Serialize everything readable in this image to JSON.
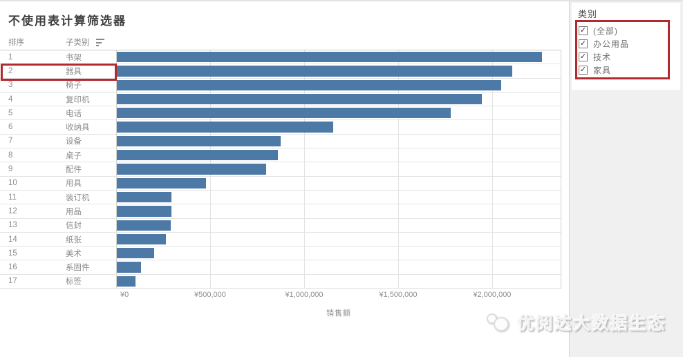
{
  "title": "不使用表计算筛选器",
  "table": {
    "rank_header": "排序",
    "subcat_header": "子类别",
    "sort_icon": "sort-descending-icon"
  },
  "chart_data": {
    "type": "bar",
    "orientation": "horizontal",
    "title": "不使用表计算筛选器",
    "xlabel": "销售额",
    "ylabel": "子类别",
    "xlim": [
      0,
      2368000
    ],
    "tick_values": [
      0,
      500000,
      1000000,
      1500000,
      2000000
    ],
    "x_ticks": [
      "¥0",
      "¥500,000",
      "¥1,000,000",
      "¥1,500,000",
      "¥2,000,000"
    ],
    "grid": true,
    "bar_color": "#4d79a7",
    "ranks": [
      1,
      2,
      3,
      4,
      5,
      6,
      7,
      8,
      9,
      10,
      11,
      12,
      13,
      14,
      15,
      16,
      17
    ],
    "categories": [
      "书架",
      "器具",
      "椅子",
      "复印机",
      "电话",
      "收纳具",
      "设备",
      "桌子",
      "配件",
      "用具",
      "装订机",
      "用品",
      "信封",
      "纸张",
      "美术",
      "系固件",
      "标签"
    ],
    "values": [
      2260000,
      2105000,
      2045000,
      1940000,
      1775000,
      1150000,
      870000,
      858000,
      795000,
      475000,
      292000,
      289000,
      286000,
      262000,
      200000,
      130000,
      99000
    ],
    "highlighted_rank": 2,
    "highlighted_category": "器具"
  },
  "filter_panel": {
    "title": "类别",
    "check_glyph": "✓",
    "items": [
      {
        "label": "(全部)",
        "checked": true
      },
      {
        "label": "办公用品",
        "checked": true
      },
      {
        "label": "技术",
        "checked": true
      },
      {
        "label": "家具",
        "checked": true
      }
    ]
  },
  "watermark": {
    "text": "优阅达大数据生态"
  },
  "colors": {
    "bar": "#4d79a7",
    "highlight_box": "#b2292e",
    "axis_text": "#8d8d8d",
    "panel_background": "#f1f0f0"
  }
}
